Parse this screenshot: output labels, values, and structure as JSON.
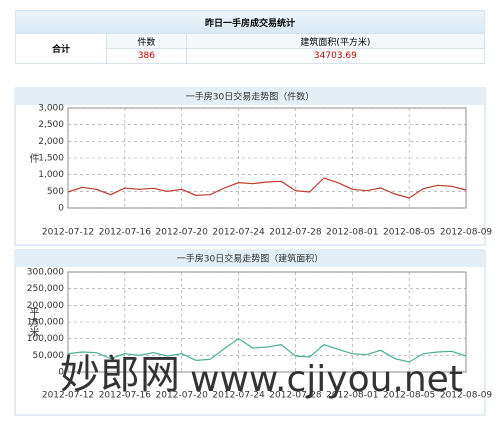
{
  "table": {
    "title": "昨日一手房成交易统计",
    "total_label": "合计",
    "headers": [
      "件数",
      "建筑面积(平方米)"
    ],
    "values": [
      "386",
      "34703.69"
    ]
  },
  "watermark": [
    "妙郎网",
    "www.cjiyou.net"
  ],
  "chart_data": [
    {
      "type": "line",
      "title": "一手房30日交易走势图（件数）",
      "ylabel": "件",
      "categories": [
        "2012-07-12",
        null,
        null,
        null,
        "2012-07-16",
        null,
        null,
        null,
        "2012-07-20",
        null,
        null,
        null,
        "2012-07-24",
        null,
        null,
        null,
        "2012-07-28",
        null,
        null,
        null,
        "2012-08-01",
        null,
        null,
        null,
        "2012-08-05",
        null,
        null,
        null,
        "2012-08-09"
      ],
      "series": [
        {
          "color": "#c0392b",
          "values": [
            480,
            620,
            560,
            400,
            600,
            560,
            590,
            500,
            560,
            380,
            400,
            600,
            760,
            730,
            780,
            800,
            520,
            480,
            900,
            760,
            560,
            520,
            600,
            420,
            300,
            580,
            680,
            650,
            540
          ]
        }
      ],
      "ylim": [
        0,
        3000
      ],
      "yticks": [
        0,
        500,
        {
          "value": 1000,
          "label": "1,000"
        },
        {
          "value": 1500,
          "label": "1,500"
        },
        {
          "value": 2000,
          "label": "2,000"
        },
        {
          "value": 2500,
          "label": "2,500"
        },
        {
          "value": 3000,
          "label": "3,000"
        }
      ],
      "grid": true
    },
    {
      "type": "line",
      "title": "一手房30日交易走势图（建筑面积）",
      "ylabel": "平方米",
      "categories": [
        "2012-07-12",
        null,
        null,
        null,
        "2012-07-16",
        null,
        null,
        null,
        "2012-07-20",
        null,
        null,
        null,
        "2012-07-24",
        null,
        null,
        null,
        "2012-07-28",
        null,
        null,
        null,
        "2012-08-01",
        null,
        null,
        null,
        "2012-08-05",
        null,
        null,
        null,
        "2012-08-09"
      ],
      "series": [
        {
          "color": "#4fae94",
          "values": [
            55000,
            60000,
            58000,
            40000,
            55000,
            50000,
            58000,
            48000,
            55000,
            35000,
            38000,
            70000,
            100000,
            72000,
            75000,
            82000,
            48000,
            45000,
            82000,
            68000,
            55000,
            52000,
            65000,
            40000,
            30000,
            55000,
            60000,
            62000,
            48000
          ]
        }
      ],
      "ylim": [
        0,
        300000
      ],
      "yticks": [
        0,
        {
          "value": 50000,
          "label": "50,000"
        },
        {
          "value": 100000,
          "label": "100,000"
        },
        {
          "value": 150000,
          "label": "150,000"
        },
        {
          "value": 200000,
          "label": "200,000"
        },
        {
          "value": 250000,
          "label": "250,000"
        },
        {
          "value": 300000,
          "label": "300,000"
        }
      ],
      "grid": true
    }
  ]
}
